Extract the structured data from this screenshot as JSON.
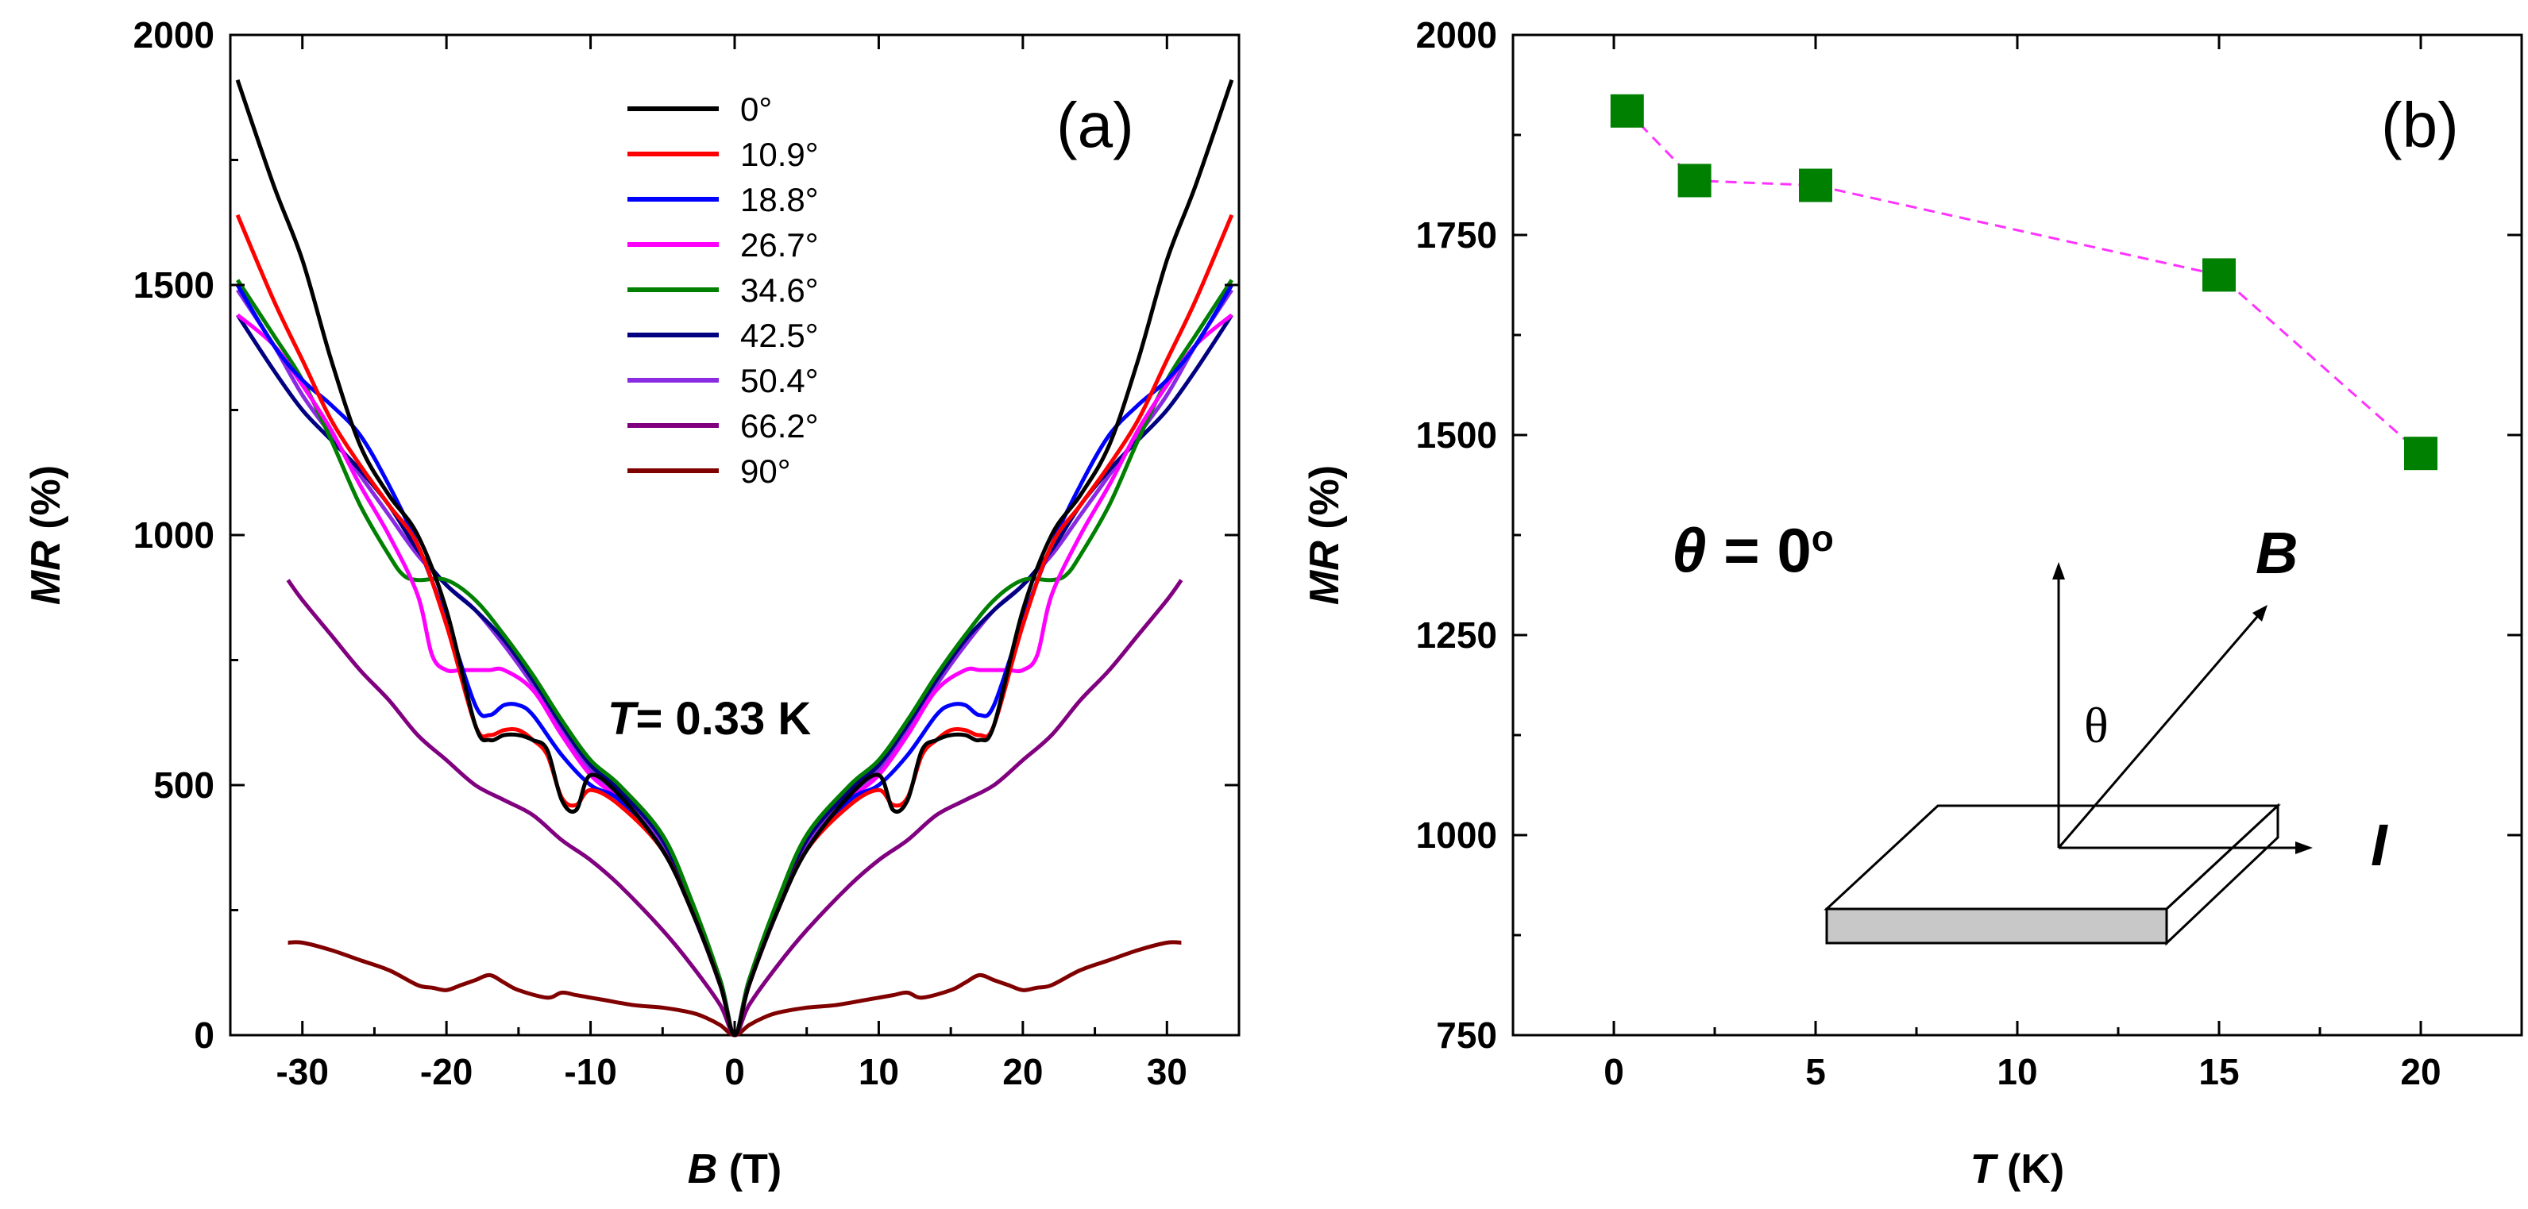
{
  "panels": [
    {
      "id": "a",
      "label": "(a)",
      "xlabel_italic": "B",
      "xlabel_rest": " (T)",
      "ylabel_italic": "MR",
      "ylabel_rest": " (%)",
      "annotation_italic": "T",
      "annotation_rest": "= 0.33 K"
    },
    {
      "id": "b",
      "label": "(b)",
      "xlabel_italic": "T",
      "xlabel_rest": " (K)",
      "ylabel_italic": "MR",
      "ylabel_rest": " (%)",
      "annotation_theta": "θ",
      "annotation_rest": " = 0",
      "annotation_degree": "o",
      "inset": {
        "B_label": "B",
        "I_label": "I",
        "theta_label": "θ"
      }
    }
  ],
  "chart_data": [
    {
      "type": "line",
      "panel": "a",
      "title": "(a)",
      "xlabel": "B (T)",
      "ylabel": "MR (%)",
      "xlim": [
        -35,
        35
      ],
      "ylim": [
        0,
        2000
      ],
      "xticks": [
        -30,
        -20,
        -10,
        0,
        10,
        20,
        30
      ],
      "yticks": [
        0,
        500,
        1000,
        1500,
        2000
      ],
      "legend_position": "top-center",
      "series": [
        {
          "name": "0°",
          "color": "#000000",
          "x": [
            0,
            1,
            3,
            5,
            8,
            10,
            11,
            12,
            13,
            14,
            15,
            16,
            17,
            18,
            20,
            22,
            24,
            26,
            28,
            30,
            32,
            34.5
          ],
          "y": [
            0,
            100,
            250,
            370,
            480,
            520,
            450,
            470,
            570,
            590,
            600,
            600,
            590,
            620,
            850,
            1000,
            1080,
            1180,
            1350,
            1550,
            1700,
            1910
          ]
        },
        {
          "name": "10.9°",
          "color": "#ff0000",
          "x": [
            0,
            1,
            3,
            5,
            8,
            10,
            11,
            12,
            13,
            14,
            15,
            16,
            17,
            18,
            20,
            22,
            24,
            26,
            28,
            30,
            32,
            34.5
          ],
          "y": [
            0,
            100,
            250,
            370,
            460,
            490,
            460,
            475,
            560,
            590,
            610,
            610,
            600,
            620,
            820,
            980,
            1060,
            1140,
            1230,
            1350,
            1470,
            1640
          ]
        },
        {
          "name": "18.8°",
          "color": "#0000ff",
          "x": [
            0,
            1,
            3,
            5,
            8,
            10,
            12,
            14,
            15,
            16,
            17,
            18,
            20,
            22,
            24,
            26,
            28,
            30,
            32,
            34.5
          ],
          "y": [
            0,
            100,
            250,
            370,
            470,
            500,
            560,
            640,
            660,
            660,
            640,
            660,
            830,
            980,
            1100,
            1200,
            1260,
            1310,
            1380,
            1500
          ]
        },
        {
          "name": "26.7°",
          "color": "#ff00ff",
          "x": [
            0,
            1,
            3,
            5,
            8,
            10,
            12,
            14,
            16,
            17,
            18,
            19,
            20,
            21,
            22,
            24,
            26,
            28,
            30,
            32,
            34.5
          ],
          "y": [
            0,
            100,
            250,
            370,
            470,
            520,
            600,
            690,
            730,
            730,
            730,
            730,
            730,
            760,
            880,
            1000,
            1100,
            1210,
            1300,
            1380,
            1440
          ]
        },
        {
          "name": "34.6°",
          "color": "#008000",
          "x": [
            0,
            1,
            3,
            5,
            8,
            10,
            12,
            14,
            16,
            18,
            20,
            22,
            23,
            24,
            26,
            28,
            30,
            32,
            34.5
          ],
          "y": [
            0,
            110,
            270,
            400,
            500,
            550,
            630,
            720,
            800,
            870,
            910,
            910,
            920,
            960,
            1060,
            1190,
            1310,
            1400,
            1510
          ]
        },
        {
          "name": "42.5°",
          "color": "#000080",
          "x": [
            0,
            1,
            3,
            5,
            8,
            10,
            12,
            14,
            16,
            18,
            20,
            22,
            24,
            26,
            28,
            30,
            32,
            34.5
          ],
          "y": [
            0,
            110,
            260,
            390,
            490,
            540,
            620,
            710,
            790,
            850,
            900,
            970,
            1060,
            1130,
            1190,
            1250,
            1330,
            1440
          ]
        },
        {
          "name": "50.4°",
          "color": "#8a2be2",
          "x": [
            0,
            1,
            3,
            5,
            8,
            10,
            12,
            14,
            16,
            18,
            20,
            22,
            24,
            26,
            28,
            30,
            32,
            34.5
          ],
          "y": [
            0,
            100,
            250,
            380,
            480,
            530,
            610,
            700,
            780,
            850,
            900,
            960,
            1040,
            1120,
            1200,
            1280,
            1380,
            1490
          ]
        },
        {
          "name": "66.2°",
          "color": "#800080",
          "x": [
            0,
            1,
            3,
            5,
            8,
            10,
            12,
            14,
            16,
            18,
            20,
            22,
            24,
            26,
            28,
            30,
            31
          ],
          "y": [
            0,
            60,
            140,
            210,
            300,
            350,
            390,
            440,
            470,
            500,
            550,
            600,
            670,
            730,
            800,
            870,
            910
          ]
        },
        {
          "name": "90°",
          "color": "#800000",
          "x": [
            0,
            1,
            2,
            3,
            5,
            7,
            9,
            10,
            11,
            12,
            13,
            15,
            16,
            17,
            18,
            19,
            20,
            21,
            22,
            24,
            26,
            28,
            30,
            31
          ],
          "y": [
            0,
            20,
            35,
            45,
            55,
            60,
            70,
            75,
            80,
            85,
            75,
            90,
            105,
            120,
            110,
            100,
            90,
            95,
            100,
            130,
            150,
            170,
            185,
            185
          ]
        }
      ]
    },
    {
      "type": "line",
      "panel": "b",
      "title": "(b)",
      "xlabel": "T (K)",
      "ylabel": "MR (%)",
      "xlim": [
        -2.5,
        22.5
      ],
      "ylim": [
        750,
        2000
      ],
      "xticks": [
        0,
        5,
        10,
        15,
        20
      ],
      "yticks": [
        750,
        1000,
        1250,
        1500,
        1750,
        2000
      ],
      "series": [
        {
          "name": "θ = 0°",
          "color": "#008000",
          "line_color": "#ff33ff",
          "x": [
            0.33,
            2,
            5,
            15,
            20
          ],
          "y": [
            1905,
            1818,
            1812,
            1700,
            1477
          ]
        }
      ]
    }
  ]
}
